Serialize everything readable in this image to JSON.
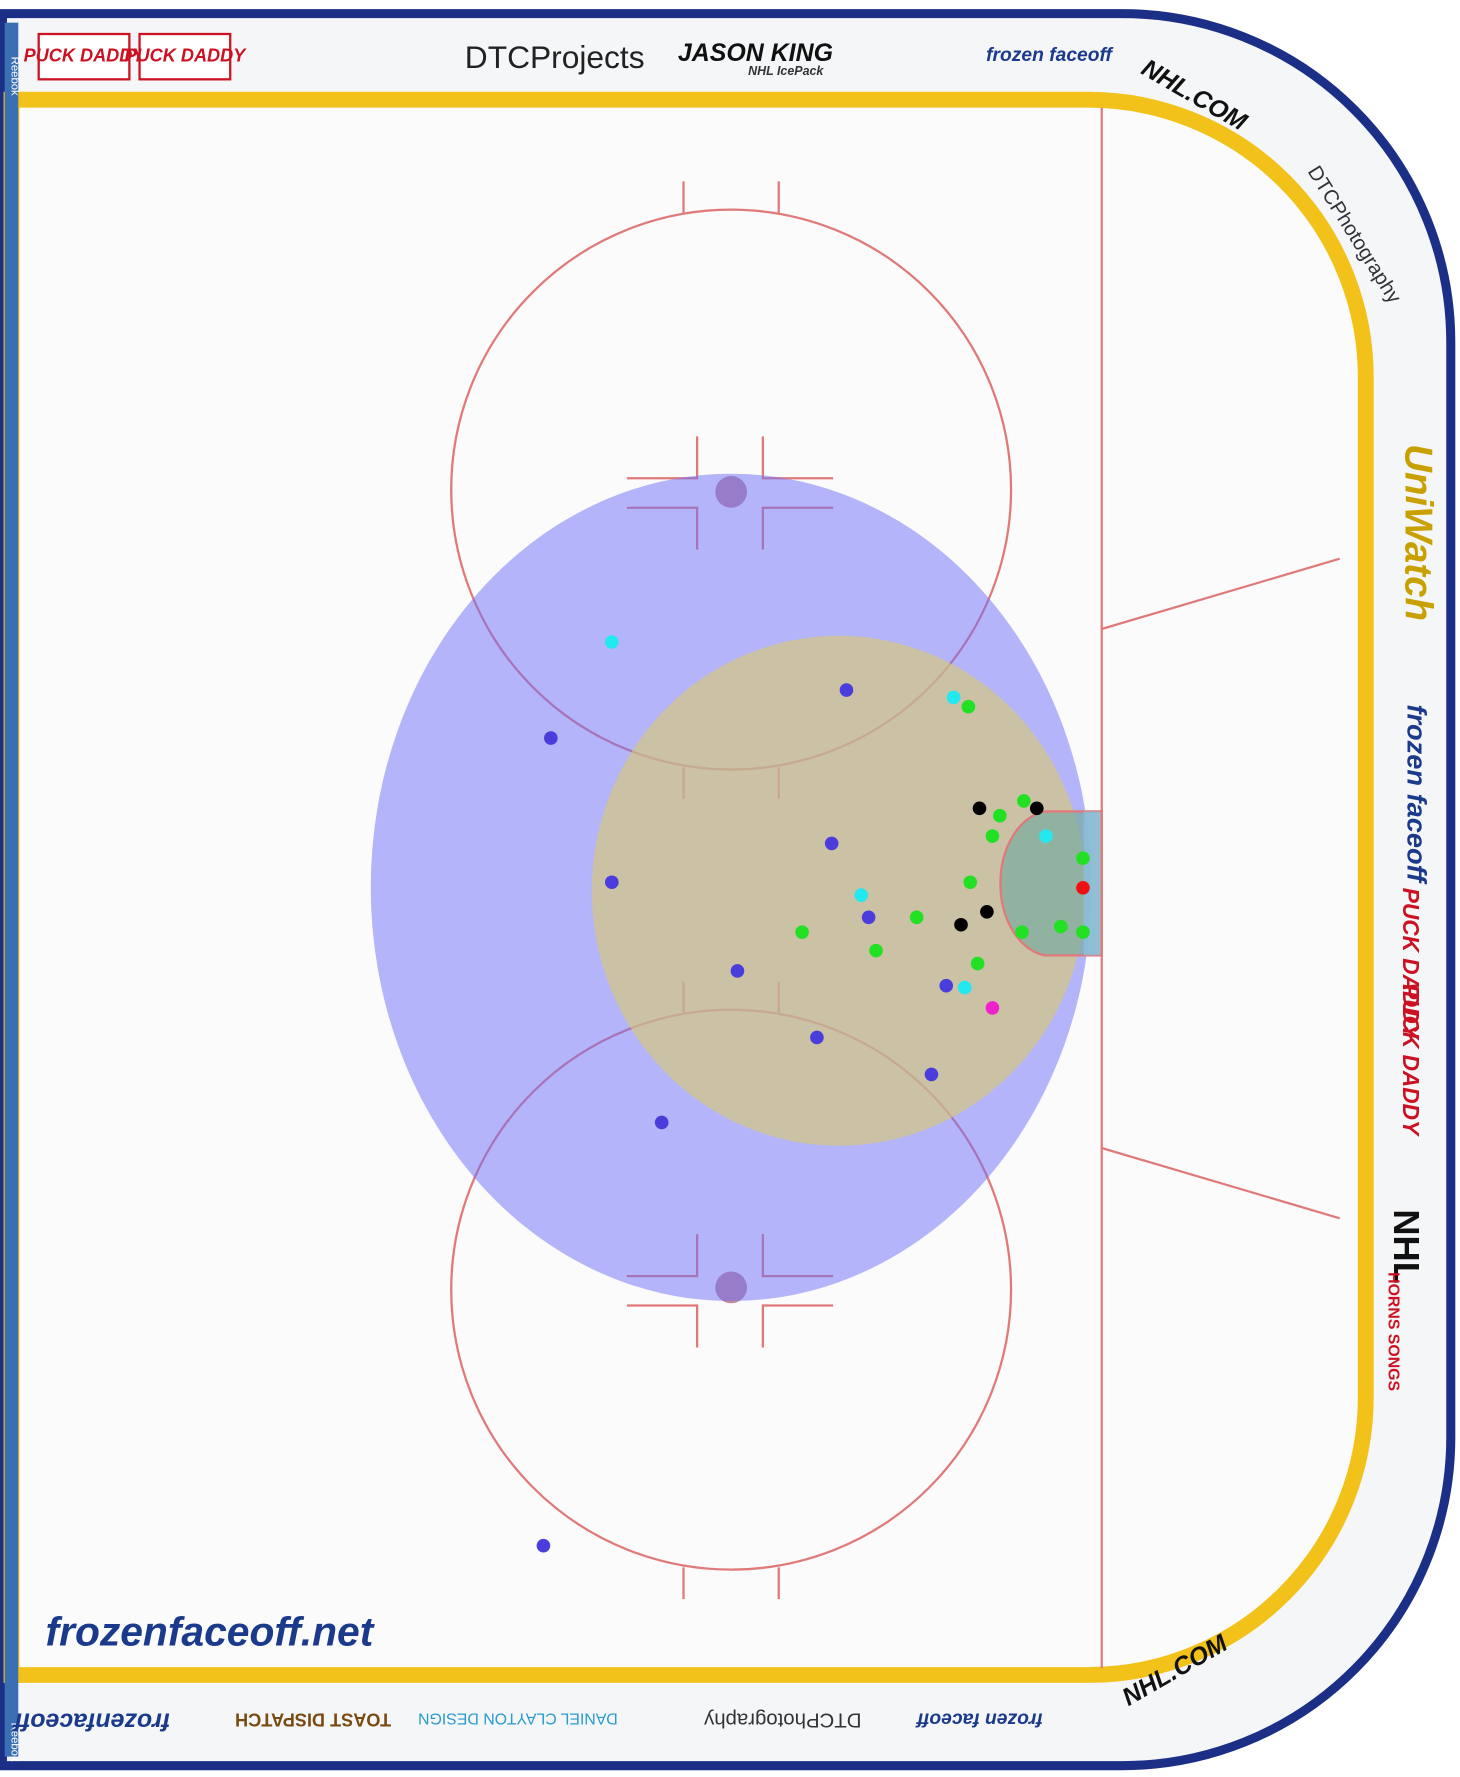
{
  "chart_data": {
    "type": "scatter",
    "xlim": [
      -58.4,
      14.1
    ],
    "ylim": [
      -42.5,
      42.5
    ],
    "series": [
      {
        "color": "#4a3ddc",
        "x": [
          -13.7,
          -29.7,
          -26.4,
          -14.5,
          -12.5,
          -19.6,
          -8.3,
          -15.3,
          -9.1,
          -23.7,
          -30.1
        ],
        "values": [
          10.8,
          8.2,
          0.4,
          2.5,
          -1.5,
          -4.4,
          -5.2,
          -8.0,
          -10.0,
          -12.6,
          -35.5
        ]
      },
      {
        "color": "#22e8f0",
        "x": [
          -26.4,
          -7.9,
          -2.9,
          -12.9,
          -7.3
        ],
        "values": [
          13.4,
          10.4,
          2.9,
          -0.3,
          -5.3
        ]
      },
      {
        "color": "#22e022",
        "x": [
          -7.1,
          -5.4,
          -4.1,
          -5.8,
          -0.9,
          -7.0,
          -9.9,
          -16.1,
          -12.1,
          -4.2,
          -2.1,
          -0.9,
          -6.6
        ],
        "values": [
          9.9,
          4.0,
          4.8,
          2.9,
          1.7,
          0.4,
          -1.5,
          -2.3,
          -3.3,
          -2.3,
          -2.0,
          -2.3,
          -4.0
        ]
      },
      {
        "color": "#000000",
        "x": [
          -6.5,
          -3.4,
          -6.1,
          -7.5
        ],
        "values": [
          4.4,
          4.4,
          -1.2,
          -1.9
        ]
      },
      {
        "color": "#ee1111",
        "x": [
          -0.9
        ],
        "values": [
          0.1
        ]
      },
      {
        "color": "#ee22cc",
        "x": [
          -5.8
        ],
        "values": [
          -6.4
        ]
      }
    ],
    "annotations": [
      "PUCK DADDY",
      "PUCK DADDY",
      "DTCProjects",
      "JASON KING",
      "NHL IcePack",
      "frozen faceoff",
      "NHL.COM",
      "DTCPhotography",
      "UniWatch",
      "frozen faceoff",
      "PUCK DADDY",
      "PUCK DADDY",
      "NHL",
      "HORNS SONGS",
      "NHL.COM",
      "frozenfaceoff.net",
      "Reebok",
      "Reebok",
      "frozenfaceoff",
      "DANIEL CLAYTON DESIGN",
      "DTCPhotography",
      "frozen faceoff",
      "TOAST DISPATCH"
    ]
  }
}
